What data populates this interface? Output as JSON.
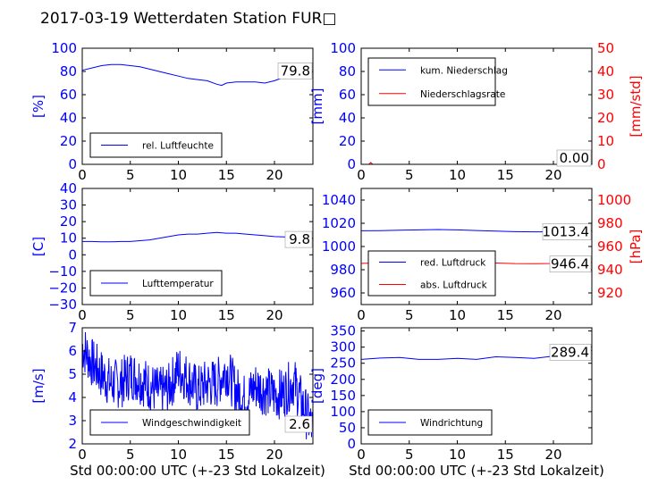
{
  "title": "2017-03-19 Wetterdaten Station FUR□",
  "colors": {
    "blue": "#0000ff",
    "red": "#ff0000",
    "black": "#000000"
  },
  "chart_data": [
    {
      "id": "humidity",
      "type": "line",
      "xlim": [
        0,
        24
      ],
      "ylim": [
        0,
        100
      ],
      "xticks": [
        "0",
        "5",
        "10",
        "15",
        "20"
      ],
      "yticks": [
        "0",
        "20",
        "40",
        "60",
        "80",
        "100"
      ],
      "ylabel": "[%]",
      "xlabel": "",
      "legend": "lower-left",
      "last_value": "79.8",
      "series": [
        {
          "name": "rel. Luftfeuchte",
          "color": "#0000ff",
          "x": [
            0,
            1,
            2,
            3,
            4,
            5,
            6,
            7,
            8,
            9,
            10,
            11,
            12,
            13,
            14,
            14.5,
            15,
            16,
            17,
            18,
            19,
            20,
            21,
            22,
            23,
            24
          ],
          "y": [
            81,
            83,
            85,
            86,
            86,
            85,
            84,
            82,
            80,
            78,
            76,
            74,
            73,
            72,
            69,
            68,
            70,
            71,
            71,
            71,
            70,
            72,
            75,
            77,
            78,
            79.8
          ]
        }
      ]
    },
    {
      "id": "precip",
      "type": "line",
      "xlim": [
        0,
        24
      ],
      "ylim": [
        0,
        100
      ],
      "y2lim": [
        0,
        50
      ],
      "xticks": [
        "0",
        "5",
        "10",
        "15",
        "20"
      ],
      "yticks": [
        "0",
        "20",
        "40",
        "60",
        "80",
        "100"
      ],
      "y2ticks": [
        "0",
        "10",
        "20",
        "30",
        "40",
        "50"
      ],
      "ylabel": "[mm]",
      "y2label": "[mm/std]",
      "xlabel": "",
      "legend": "top-left",
      "last_value": "0.00",
      "last_value2": "0.0",
      "series": [
        {
          "name": "kum. Niederschlag",
          "color": "#0000ff",
          "axis": "left",
          "x": [
            0,
            6,
            12,
            18,
            24
          ],
          "y": [
            0,
            0,
            0,
            0,
            0
          ]
        },
        {
          "name": "Niederschlagsrate",
          "color": "#ff0000",
          "axis": "right",
          "x": [
            0,
            0.8,
            1,
            1.2,
            2,
            24
          ],
          "y": [
            0,
            0,
            0.8,
            0,
            0,
            0
          ]
        }
      ]
    },
    {
      "id": "temperature",
      "type": "line",
      "xlim": [
        0,
        24
      ],
      "ylim": [
        -30,
        40
      ],
      "xticks": [
        "0",
        "5",
        "10",
        "15",
        "20"
      ],
      "yticks": [
        "−30",
        "−20",
        "−10",
        "0",
        "10",
        "20",
        "30",
        "40"
      ],
      "ylabel": "[C]",
      "xlabel": "",
      "legend": "lower-left",
      "last_value": "9.8",
      "series": [
        {
          "name": "Lufttemperatur",
          "color": "#0000ff",
          "x": [
            0,
            1,
            2,
            3,
            4,
            5,
            6,
            7,
            8,
            9,
            10,
            11,
            12,
            13,
            14,
            15,
            16,
            17,
            18,
            19,
            20,
            21,
            22,
            23,
            24
          ],
          "y": [
            8,
            8,
            7.8,
            7.8,
            8,
            8,
            8.5,
            9,
            10,
            11,
            12,
            12.5,
            12.5,
            13,
            13.5,
            13,
            13,
            12.5,
            12,
            11.5,
            11,
            10.8,
            10.5,
            10,
            9.8
          ]
        }
      ]
    },
    {
      "id": "pressure",
      "type": "line",
      "xlim": [
        0,
        24
      ],
      "ylim": [
        950,
        1050
      ],
      "y2lim": [
        910,
        1010
      ],
      "xticks": [
        "0",
        "5",
        "10",
        "15",
        "20"
      ],
      "yticks": [
        "960",
        "980",
        "1000",
        "1020",
        "1040"
      ],
      "y2ticks": [
        "920",
        "940",
        "960",
        "980",
        "1000"
      ],
      "ylabel": "",
      "y2label": "[hPa]",
      "xlabel": "",
      "legend": "lower-left",
      "last_value": "1013.4",
      "last_value2": "946.4",
      "series": [
        {
          "name": "red. Luftdruck",
          "color": "#0000ff",
          "axis": "left",
          "x": [
            0,
            2,
            4,
            6,
            8,
            10,
            12,
            14,
            16,
            18,
            20,
            22,
            24
          ],
          "y": [
            1013.5,
            1013.6,
            1014,
            1014.3,
            1014.6,
            1014.3,
            1013.8,
            1013.2,
            1012.8,
            1012.6,
            1012.7,
            1013.1,
            1013.4
          ]
        },
        {
          "name": "abs. Luftdruck",
          "color": "#ff0000",
          "axis": "right",
          "x": [
            0,
            2,
            4,
            6,
            8,
            10,
            12,
            14,
            16,
            18,
            20,
            22,
            24
          ],
          "y": [
            945.5,
            945.8,
            946.3,
            946.8,
            947.2,
            946.9,
            946.4,
            945.8,
            945.3,
            945.2,
            945.4,
            945.9,
            946.4
          ]
        }
      ]
    },
    {
      "id": "windspeed",
      "type": "line",
      "xlim": [
        0,
        24
      ],
      "ylim": [
        2,
        7
      ],
      "xticks": [
        "0",
        "5",
        "10",
        "15",
        "20"
      ],
      "yticks": [
        "2",
        "3",
        "4",
        "5",
        "6",
        "7"
      ],
      "ylabel": "[m/s]",
      "xlabel": "Std 00:00:00 UTC (+-23 Std Lokalzeit)",
      "legend": "lower-left",
      "last_value": "2.6",
      "series": [
        {
          "name": "Windgeschwindigkeit",
          "color": "#0000ff",
          "x": [
            0,
            1,
            2,
            3,
            4,
            5,
            6,
            7,
            8,
            9,
            10,
            11,
            12,
            13,
            14,
            15,
            16,
            17,
            18,
            19,
            20,
            21,
            22,
            23,
            24
          ],
          "y": [
            6.2,
            5.5,
            5.0,
            4.6,
            4.6,
            5.0,
            4.8,
            4.5,
            4.2,
            4.4,
            5.2,
            4.8,
            4.3,
            4.6,
            4.6,
            5.2,
            4.3,
            3.9,
            4.5,
            4.3,
            4.1,
            4.2,
            4.7,
            3.6,
            2.6
          ]
        }
      ]
    },
    {
      "id": "winddir",
      "type": "line",
      "xlim": [
        0,
        24
      ],
      "ylim": [
        0,
        360
      ],
      "xticks": [
        "0",
        "5",
        "10",
        "15",
        "20"
      ],
      "yticks": [
        "0",
        "50",
        "100",
        "150",
        "200",
        "250",
        "300",
        "350"
      ],
      "ylabel": "[deg]",
      "xlabel": "Std 00:00:00 UTC (+-23 Std Lokalzeit)",
      "legend": "lower-left",
      "last_value": "289.4",
      "series": [
        {
          "name": "Windrichtung",
          "color": "#0000ff",
          "x": [
            0,
            2,
            4,
            6,
            8,
            10,
            12,
            14,
            16,
            18,
            20,
            22,
            24
          ],
          "y": [
            262,
            266,
            268,
            262,
            262,
            265,
            262,
            270,
            268,
            265,
            272,
            282,
            289.4
          ]
        }
      ]
    }
  ]
}
